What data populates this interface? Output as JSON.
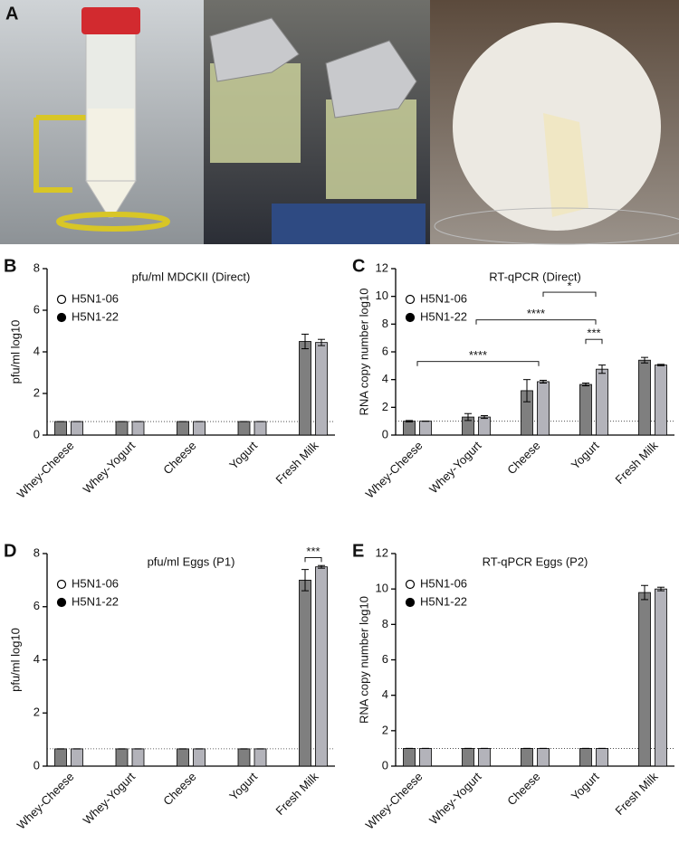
{
  "panel_a_label": "A",
  "chart_data": [
    {
      "type": "bar",
      "panel": "B",
      "title": "pfu/ml MDCKII (Direct)",
      "y_label": "pfu/ml log10",
      "categories": [
        "Whey-Cheese",
        "Whey-Yogurt",
        "Cheese",
        "Yogurt",
        "Fresh Milk"
      ],
      "series": [
        {
          "name": "H5N1-06",
          "color": "#7f7f7f",
          "values": [
            0.65,
            0.65,
            0.65,
            0.65,
            4.5
          ],
          "errors": [
            0,
            0,
            0,
            0,
            0.35
          ]
        },
        {
          "name": "H5N1-22",
          "color": "#b3b3ba",
          "values": [
            0.65,
            0.65,
            0.65,
            0.65,
            4.45
          ],
          "errors": [
            0,
            0,
            0,
            0,
            0.15
          ]
        }
      ],
      "ylim": [
        0,
        8
      ],
      "yticks": [
        0,
        2,
        4,
        6,
        8
      ],
      "reference_line": 0.65,
      "annotations": []
    },
    {
      "type": "bar",
      "panel": "C",
      "title": "RT-qPCR (Direct)",
      "y_label": "RNA copy number log10",
      "categories": [
        "Whey-Cheese",
        "Whey-Yogurt",
        "Cheese",
        "Yogurt",
        "Fresh Milk"
      ],
      "series": [
        {
          "name": "H5N1-06",
          "color": "#7f7f7f",
          "values": [
            1.0,
            1.3,
            3.2,
            3.65,
            5.4
          ],
          "errors": [
            0.05,
            0.25,
            0.8,
            0.1,
            0.2
          ]
        },
        {
          "name": "H5N1-22",
          "color": "#b3b3ba",
          "values": [
            1.0,
            1.3,
            3.85,
            4.75,
            5.05
          ],
          "errors": [
            0,
            0.1,
            0.1,
            0.3,
            0.05
          ]
        }
      ],
      "ylim": [
        0,
        12
      ],
      "yticks": [
        0,
        2,
        4,
        6,
        8,
        10,
        12
      ],
      "reference_line": 1,
      "annotations": [
        "*",
        "****",
        "***",
        "****"
      ]
    },
    {
      "type": "bar",
      "panel": "D",
      "title": "pfu/ml Eggs (P1)",
      "y_label": "pfu/ml log10",
      "categories": [
        "Whey-Cheese",
        "Whey-Yogurt",
        "Cheese",
        "Yogurt",
        "Fresh Milk"
      ],
      "series": [
        {
          "name": "H5N1-06",
          "color": "#7f7f7f",
          "values": [
            0.65,
            0.65,
            0.65,
            0.65,
            7.0
          ],
          "errors": [
            0,
            0,
            0,
            0,
            0.4
          ]
        },
        {
          "name": "H5N1-22",
          "color": "#b3b3ba",
          "values": [
            0.65,
            0.65,
            0.65,
            0.65,
            7.5
          ],
          "errors": [
            0,
            0,
            0,
            0,
            0.05
          ]
        }
      ],
      "ylim": [
        0,
        8
      ],
      "yticks": [
        0,
        2,
        4,
        6,
        8
      ],
      "reference_line": 0.65,
      "annotations": [
        "***"
      ]
    },
    {
      "type": "bar",
      "panel": "E",
      "title": "RT-qPCR Eggs (P2)",
      "y_label": "RNA copy number log10",
      "categories": [
        "Whey-Cheese",
        "Whey-Yogurt",
        "Cheese",
        "Yogurt",
        "Fresh Milk"
      ],
      "series": [
        {
          "name": "H5N1-06",
          "color": "#7f7f7f",
          "values": [
            1,
            1,
            1,
            1,
            9.8
          ],
          "errors": [
            0,
            0,
            0,
            0,
            0.4
          ]
        },
        {
          "name": "H5N1-22",
          "color": "#b3b3ba",
          "values": [
            1,
            1,
            1,
            1,
            10.0
          ],
          "errors": [
            0,
            0,
            0,
            0,
            0.1
          ]
        }
      ],
      "ylim": [
        0,
        12
      ],
      "yticks": [
        0,
        2,
        4,
        6,
        8,
        10,
        12
      ],
      "reference_line": 1,
      "annotations": []
    }
  ]
}
